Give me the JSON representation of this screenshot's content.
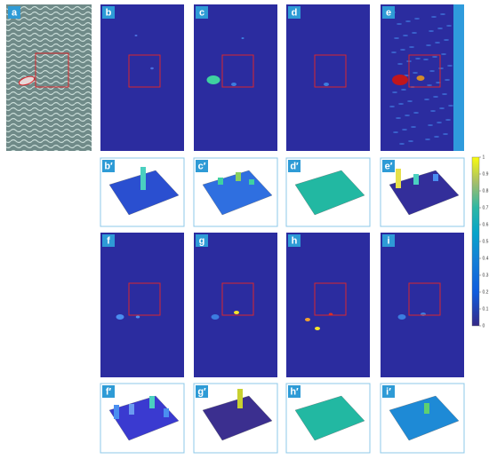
{
  "panels_row1": [
    "a",
    "b",
    "c",
    "d",
    "e"
  ],
  "surfaces_row2": [
    "b′",
    "c′",
    "d′",
    "e′"
  ],
  "panels_row3": [
    "f",
    "g",
    "h",
    "i"
  ],
  "surfaces_row4": [
    "f′",
    "g′",
    "h′",
    "i′"
  ],
  "colorbar": {
    "ticks": [
      0,
      0.1,
      0.2,
      0.3,
      0.4,
      0.5,
      0.6,
      0.7,
      0.8,
      0.9,
      1
    ]
  }
}
